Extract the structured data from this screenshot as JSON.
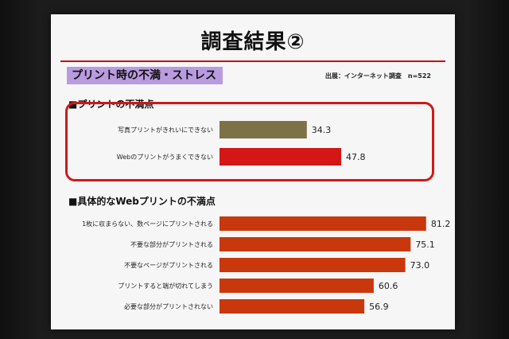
{
  "slide": {
    "title": "調査結果②",
    "subtitle": "プリント時の不満・ストレス",
    "source": "出展：インターネット調査　n=522"
  },
  "chart_data": [
    {
      "type": "bar",
      "title": "■プリントの不満点",
      "categories": [
        "写真プリントがきれいにできない",
        "Webのプリントがうまくできない"
      ],
      "values": [
        34.3,
        47.8
      ],
      "colors": [
        "#7d7147",
        "#d41616"
      ]
    },
    {
      "type": "bar",
      "title": "■具体的なWebプリントの不満点",
      "categories": [
        "1枚に収まらない、数ページにプリントされる",
        "不要な部分がプリントされる",
        "不要なページがプリントされる",
        "プリントすると端が切れてしまう",
        "必要な部分がプリントされない"
      ],
      "values": [
        81.2,
        75.1,
        73.0,
        60.6,
        56.9
      ],
      "colors": [
        "#c8380c"
      ]
    }
  ]
}
